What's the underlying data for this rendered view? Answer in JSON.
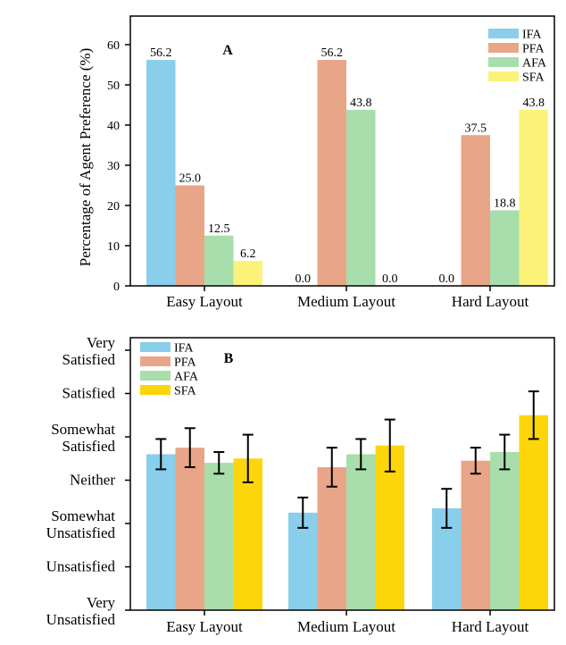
{
  "colors": {
    "IFA": "#89ceea",
    "PFA": "#e9a587",
    "AFA": "#a8deab",
    "SFA_A": "#fcf27a",
    "SFA_B": "#fcd60a"
  },
  "chart_data": [
    {
      "type": "bar",
      "panel_label": "A",
      "ylabel": "Percentage of Agent Preference (%)",
      "xlabel": "",
      "categories": [
        "Easy Layout",
        "Medium Layout",
        "Hard Layout"
      ],
      "ylim": [
        0,
        62
      ],
      "yticks": [
        0,
        10,
        20,
        30,
        40,
        50,
        60
      ],
      "legend_position": "top-right",
      "series": [
        {
          "name": "IFA",
          "values": [
            56.2,
            0.0,
            0.0
          ],
          "labels": [
            "56.2",
            "0.0",
            "0.0"
          ]
        },
        {
          "name": "PFA",
          "values": [
            25.0,
            56.2,
            37.5
          ],
          "labels": [
            "25.0",
            "56.2",
            "37.5"
          ]
        },
        {
          "name": "AFA",
          "values": [
            12.5,
            43.8,
            18.8
          ],
          "labels": [
            "12.5",
            "43.8",
            "18.8"
          ]
        },
        {
          "name": "SFA",
          "values": [
            6.2,
            0.0,
            43.8
          ],
          "labels": [
            "6.2",
            "0.0",
            "43.8"
          ]
        }
      ]
    },
    {
      "type": "bar",
      "panel_label": "B",
      "xlabel": "",
      "ylabel": "",
      "categories": [
        "Easy Layout",
        "Medium Layout",
        "Hard Layout"
      ],
      "ylim": [
        1,
        7
      ],
      "legend_position": "top-left",
      "y_tick_labels": [
        {
          "value": 1,
          "lines": [
            "Very",
            "Unsatisfied"
          ]
        },
        {
          "value": 2,
          "lines": [
            "Unsatisfied"
          ]
        },
        {
          "value": 3,
          "lines": [
            "Somewhat",
            "Unsatisfied"
          ]
        },
        {
          "value": 4,
          "lines": [
            "Neither"
          ]
        },
        {
          "value": 5,
          "lines": [
            "Somewhat",
            "Satisfied"
          ]
        },
        {
          "value": 6,
          "lines": [
            "Satisfied"
          ]
        },
        {
          "value": 7,
          "lines": [
            "Very",
            "Satisfied"
          ]
        }
      ],
      "series": [
        {
          "name": "IFA",
          "values": [
            4.6,
            3.25,
            3.35
          ],
          "errors": [
            0.35,
            0.35,
            0.45
          ]
        },
        {
          "name": "PFA",
          "values": [
            4.75,
            4.3,
            4.45
          ],
          "errors": [
            0.45,
            0.45,
            0.3
          ]
        },
        {
          "name": "AFA",
          "values": [
            4.4,
            4.6,
            4.65
          ],
          "errors": [
            0.25,
            0.35,
            0.4
          ]
        },
        {
          "name": "SFA",
          "values": [
            4.5,
            4.8,
            5.5
          ],
          "errors": [
            0.55,
            0.6,
            0.55
          ]
        }
      ]
    }
  ]
}
